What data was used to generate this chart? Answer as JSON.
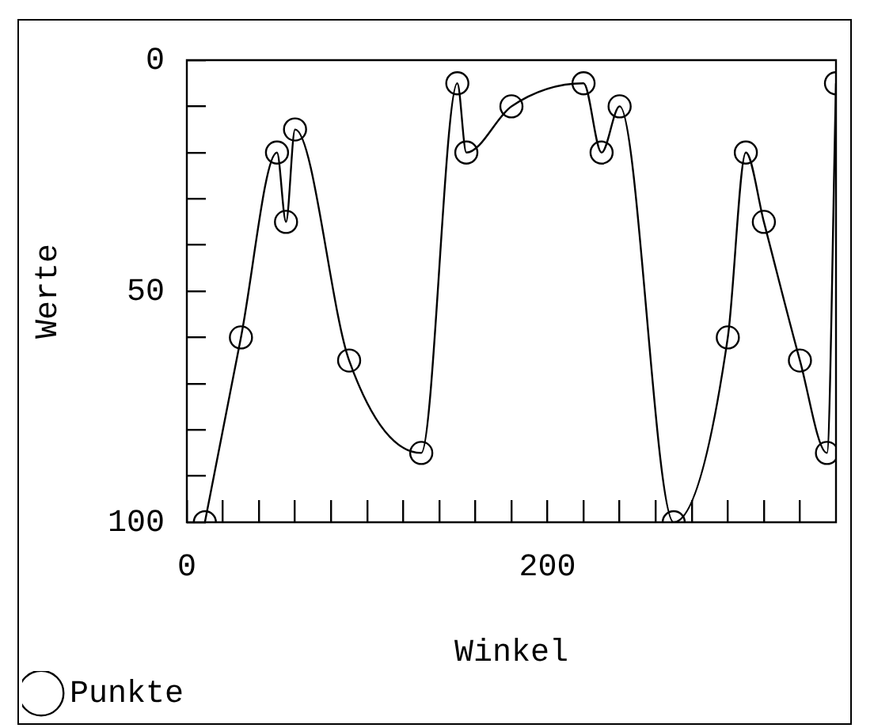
{
  "chart_data": {
    "type": "line",
    "xlabel": "Winkel",
    "ylabel": "Werte",
    "x": [
      10,
      30,
      50,
      55,
      60,
      90,
      130,
      150,
      155,
      180,
      220,
      230,
      240,
      270,
      300,
      310,
      320,
      340,
      355,
      360
    ],
    "series": [
      {
        "name": "Punkte",
        "color": "#000000",
        "values": [
          100,
          60,
          20,
          35,
          15,
          65,
          85,
          5,
          20,
          10,
          5,
          20,
          10,
          100,
          60,
          20,
          35,
          65,
          85,
          5
        ]
      }
    ],
    "xlim": [
      0,
      360
    ],
    "ylim": [
      100,
      0
    ],
    "xticks": [
      0,
      {
        "value": 20,
        "label": null
      },
      {
        "value": 40,
        "label": null
      },
      {
        "value": 60,
        "label": null
      },
      {
        "value": 80,
        "label": null
      },
      {
        "value": 100,
        "label": null
      },
      {
        "value": 120,
        "label": null
      },
      {
        "value": 140,
        "label": null
      },
      {
        "value": 160,
        "label": null
      },
      {
        "value": 180,
        "label": null
      },
      200,
      {
        "value": 220,
        "label": null
      },
      {
        "value": 240,
        "label": null
      },
      {
        "value": 260,
        "label": null
      },
      {
        "value": 280,
        "label": null
      },
      {
        "value": 300,
        "label": null
      },
      {
        "value": 320,
        "label": null
      },
      {
        "value": 340,
        "label": null
      }
    ],
    "yticks": [
      0,
      {
        "value": 10,
        "label": null
      },
      {
        "value": 20,
        "label": null
      },
      {
        "value": 30,
        "label": null
      },
      {
        "value": 40,
        "label": null
      },
      50,
      {
        "value": 60,
        "label": null
      },
      {
        "value": 70,
        "label": null
      },
      {
        "value": 80,
        "label": null
      },
      {
        "value": 90,
        "label": null
      },
      100
    ],
    "grid": false,
    "legend": "bottom left",
    "marker": "circle",
    "line_style": "solid"
  }
}
